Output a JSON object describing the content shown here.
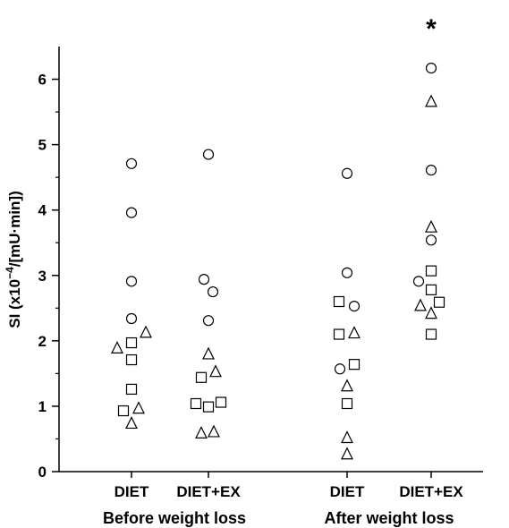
{
  "chart_data": {
    "type": "scatter",
    "ylabel_main": "SI (x10",
    "ylabel_exp": "−4",
    "ylabel_rest": "/[mU·min])",
    "ylim": [
      0,
      6.5
    ],
    "yticks": [
      "0",
      "1",
      "2",
      "3",
      "4",
      "5",
      "6"
    ],
    "categories": [
      "DIET",
      "DIET+EX",
      "DIET",
      "DIET+EX"
    ],
    "groups": [
      "Before weight loss",
      "After weight loss"
    ],
    "annotation": "*",
    "annotation_category": 3,
    "grid": false,
    "points": [
      {
        "cat": 0,
        "marker": "circle",
        "y": 4.71,
        "dx": 0
      },
      {
        "cat": 0,
        "marker": "circle",
        "y": 3.96,
        "dx": 0
      },
      {
        "cat": 0,
        "marker": "circle",
        "y": 2.91,
        "dx": 0
      },
      {
        "cat": 0,
        "marker": "circle",
        "y": 2.34,
        "dx": 0
      },
      {
        "cat": 0,
        "marker": "triangle",
        "y": 2.13,
        "dx": 16
      },
      {
        "cat": 0,
        "marker": "square",
        "y": 1.97,
        "dx": 0
      },
      {
        "cat": 0,
        "marker": "triangle",
        "y": 1.89,
        "dx": -16
      },
      {
        "cat": 0,
        "marker": "square",
        "y": 1.71,
        "dx": 0
      },
      {
        "cat": 0,
        "marker": "square",
        "y": 1.26,
        "dx": 0
      },
      {
        "cat": 0,
        "marker": "triangle",
        "y": 0.97,
        "dx": 8
      },
      {
        "cat": 0,
        "marker": "square",
        "y": 0.93,
        "dx": -9
      },
      {
        "cat": 0,
        "marker": "triangle",
        "y": 0.74,
        "dx": 0
      },
      {
        "cat": 1,
        "marker": "circle",
        "y": 4.85,
        "dx": 0
      },
      {
        "cat": 1,
        "marker": "circle",
        "y": 2.94,
        "dx": -5
      },
      {
        "cat": 1,
        "marker": "circle",
        "y": 2.75,
        "dx": 5
      },
      {
        "cat": 1,
        "marker": "circle",
        "y": 2.31,
        "dx": 0
      },
      {
        "cat": 1,
        "marker": "triangle",
        "y": 1.8,
        "dx": 0
      },
      {
        "cat": 1,
        "marker": "triangle",
        "y": 1.53,
        "dx": 8
      },
      {
        "cat": 1,
        "marker": "square",
        "y": 1.44,
        "dx": -8
      },
      {
        "cat": 1,
        "marker": "square",
        "y": 1.06,
        "dx": 14
      },
      {
        "cat": 1,
        "marker": "square",
        "y": 1.04,
        "dx": -14
      },
      {
        "cat": 1,
        "marker": "square",
        "y": 0.99,
        "dx": 0
      },
      {
        "cat": 1,
        "marker": "triangle",
        "y": 0.61,
        "dx": 6
      },
      {
        "cat": 1,
        "marker": "triangle",
        "y": 0.59,
        "dx": -8
      },
      {
        "cat": 2,
        "marker": "circle",
        "y": 4.56,
        "dx": 0
      },
      {
        "cat": 2,
        "marker": "circle",
        "y": 3.04,
        "dx": 0
      },
      {
        "cat": 2,
        "marker": "square",
        "y": 2.6,
        "dx": -9
      },
      {
        "cat": 2,
        "marker": "circle",
        "y": 2.53,
        "dx": 8
      },
      {
        "cat": 2,
        "marker": "triangle",
        "y": 2.12,
        "dx": 8
      },
      {
        "cat": 2,
        "marker": "square",
        "y": 2.1,
        "dx": -9
      },
      {
        "cat": 2,
        "marker": "square",
        "y": 1.64,
        "dx": 8
      },
      {
        "cat": 2,
        "marker": "circle",
        "y": 1.57,
        "dx": -8
      },
      {
        "cat": 2,
        "marker": "triangle",
        "y": 1.31,
        "dx": 0
      },
      {
        "cat": 2,
        "marker": "square",
        "y": 1.04,
        "dx": 0
      },
      {
        "cat": 2,
        "marker": "triangle",
        "y": 0.52,
        "dx": 0
      },
      {
        "cat": 2,
        "marker": "triangle",
        "y": 0.27,
        "dx": 0
      },
      {
        "cat": 3,
        "marker": "circle",
        "y": 6.17,
        "dx": 0
      },
      {
        "cat": 3,
        "marker": "triangle",
        "y": 5.66,
        "dx": 0
      },
      {
        "cat": 3,
        "marker": "circle",
        "y": 4.61,
        "dx": 0
      },
      {
        "cat": 3,
        "marker": "triangle",
        "y": 3.74,
        "dx": 0
      },
      {
        "cat": 3,
        "marker": "circle",
        "y": 3.54,
        "dx": 0
      },
      {
        "cat": 3,
        "marker": "square",
        "y": 3.07,
        "dx": 0
      },
      {
        "cat": 3,
        "marker": "circle",
        "y": 2.91,
        "dx": -14
      },
      {
        "cat": 3,
        "marker": "square",
        "y": 2.78,
        "dx": 0
      },
      {
        "cat": 3,
        "marker": "square",
        "y": 2.59,
        "dx": 9
      },
      {
        "cat": 3,
        "marker": "triangle",
        "y": 2.54,
        "dx": -12
      },
      {
        "cat": 3,
        "marker": "triangle",
        "y": 2.42,
        "dx": 0
      },
      {
        "cat": 3,
        "marker": "square",
        "y": 2.1,
        "dx": 0
      }
    ]
  }
}
